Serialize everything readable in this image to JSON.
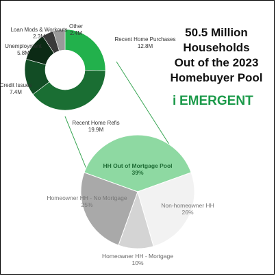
{
  "title": {
    "lines": [
      "50.5 Million",
      "Households",
      "Out of the 2023",
      "Homebuyer Pool"
    ]
  },
  "logo": {
    "prefix": "i",
    "text": "EMERGENT",
    "color": "#1c9a4a"
  },
  "chart_data": [
    {
      "type": "donut",
      "title": "",
      "slices": [
        {
          "label": "Recent Home Purchases",
          "value_label": "12.8M",
          "value": 12.8,
          "color": "#22b14c"
        },
        {
          "label": "Recent Home Refis",
          "value_label": "19.9M",
          "value": 19.9,
          "color": "#1a6e33"
        },
        {
          "label": "Credit Issues",
          "value_label": "7.4M",
          "value": 7.4,
          "color": "#124d25"
        },
        {
          "label": "Unemployment",
          "value_label": "5.8M",
          "value": 5.8,
          "color": "#0c2a15"
        },
        {
          "label": "Loan Mods & Workouts",
          "value_label": "2.3M",
          "value": 2.3,
          "color": "#3a3a3a"
        },
        {
          "label": "Other",
          "value_label": "2.4M",
          "value": 2.4,
          "color": "#9a9a9a"
        }
      ]
    },
    {
      "type": "pie",
      "title": "",
      "slices": [
        {
          "label": "HH Out of Mortgage Pool",
          "value_label": "39%",
          "value": 39,
          "color": "#8ed9a2"
        },
        {
          "label": "Non-homeowner HH",
          "value_label": "26%",
          "value": 26,
          "color": "#f2f2f2"
        },
        {
          "label": "Homeowner HH - Mortgage",
          "value_label": "10%",
          "value": 10,
          "color": "#d4d4d4"
        },
        {
          "label": "Homeowner HH - No Mortgage",
          "value_label": "25%",
          "value": 25,
          "color": "#a9a9a9"
        }
      ]
    }
  ]
}
